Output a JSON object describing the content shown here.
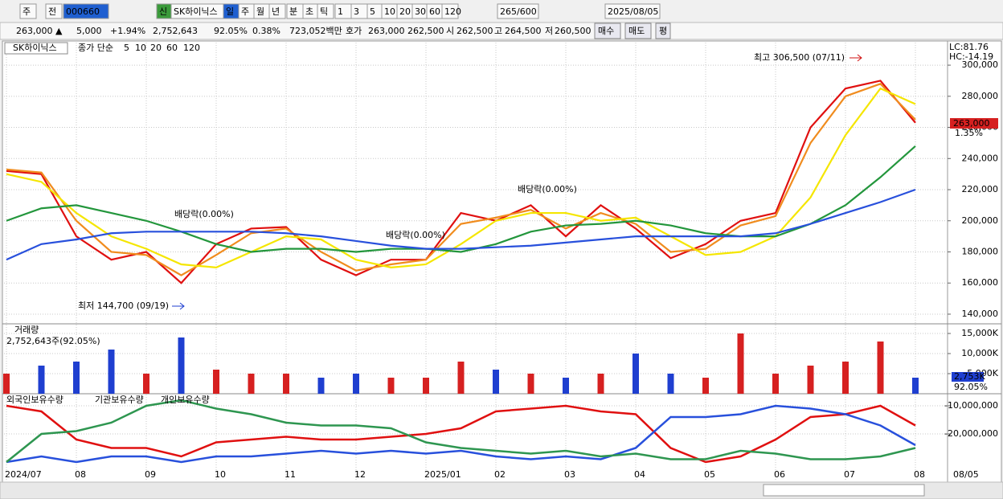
{
  "toolbar": {
    "items": [
      "주",
      "전",
      "000660",
      "신",
      "SK하이닉스",
      "일",
      "주",
      "월",
      "년",
      "분",
      "초",
      "틱",
      "1",
      "3",
      "5",
      "10",
      "20",
      "30",
      "60",
      "120",
      "265/600",
      "2025/08/05"
    ]
  },
  "quote": {
    "items": [
      "263,000 ▲",
      "5,000",
      "+1.94%",
      "2,752,643",
      "92.05%",
      "0.38%",
      "723,052백만",
      "호가",
      "263,000",
      "262,500",
      "시",
      "262,500",
      "고",
      "264,500",
      "저",
      "260,500",
      "매수",
      "매도",
      "평"
    ]
  },
  "x_labels": [
    "2024/07",
    "08",
    "09",
    "10",
    "11",
    "12",
    "2025/01",
    "02",
    "03",
    "04",
    "05",
    "06",
    "07",
    "08"
  ],
  "x_end_label": "08/05",
  "price": {
    "legend": [
      "SK하이닉스",
      "종가 단순"
    ],
    "ylim": [
      134300,
      314500
    ],
    "yticks": [
      {
        "value": 140000,
        "label": "140,000"
      },
      {
        "value": 160000,
        "label": "160,000"
      },
      {
        "value": 180000,
        "label": "180,000"
      },
      {
        "value": 200000,
        "label": "200,000"
      },
      {
        "value": 220000,
        "label": "220,000"
      },
      {
        "value": 240000,
        "label": "240,000"
      },
      {
        "value": 260000,
        "label": "260,000"
      },
      {
        "value": 280000,
        "label": "280,000"
      },
      {
        "value": 300000,
        "label": "300,000"
      }
    ],
    "right_labels": [
      "LC:81.76",
      "HC:-14.19",
      "263,000",
      "1.35%"
    ],
    "annotations": [
      "최고 306,500 (07/11)",
      "최저 144,700 (09/19)",
      "배당락(0.00%)",
      "배당락(0.00%)",
      "배당락(0.00%)"
    ],
    "series": [
      {
        "name": "5",
        "color": "#e01010",
        "values": [
          232000,
          230000,
          190000,
          175000,
          180000,
          160000,
          185000,
          195000,
          196000,
          175000,
          165000,
          175000,
          175000,
          205000,
          200000,
          210000,
          190000,
          210000,
          195000,
          176000,
          185000,
          200000,
          205000,
          260000,
          285000,
          290000,
          263000
        ]
      },
      {
        "name": "10",
        "color": "#f08c1e",
        "values": [
          233000,
          231000,
          200000,
          180000,
          178000,
          165000,
          178000,
          192000,
          195000,
          180000,
          168000,
          172000,
          175000,
          198000,
          202000,
          207000,
          195000,
          205000,
          198000,
          180000,
          182000,
          197000,
          203000,
          250000,
          280000,
          288000,
          265000
        ]
      },
      {
        "name": "20",
        "color": "#f5e600",
        "values": [
          230000,
          225000,
          205000,
          190000,
          182000,
          172000,
          170000,
          180000,
          190000,
          188000,
          175000,
          170000,
          172000,
          185000,
          200000,
          205000,
          205000,
          200000,
          202000,
          190000,
          178000,
          180000,
          190000,
          215000,
          255000,
          285000,
          275000
        ]
      },
      {
        "name": "60",
        "color": "#23963c",
        "values": [
          200000,
          208000,
          210000,
          205000,
          200000,
          193000,
          185000,
          180000,
          182000,
          182000,
          180000,
          182000,
          182000,
          180000,
          185000,
          193000,
          197000,
          198000,
          200000,
          197000,
          192000,
          190000,
          190000,
          198000,
          210000,
          228000,
          248000
        ]
      },
      {
        "name": "120",
        "color": "#2850dc",
        "values": [
          175000,
          185000,
          188000,
          192000,
          193000,
          193000,
          193000,
          193000,
          192000,
          190000,
          187000,
          184000,
          182000,
          182000,
          183000,
          184000,
          186000,
          188000,
          190000,
          190000,
          190000,
          190000,
          192000,
          198000,
          205000,
          212000,
          220000
        ]
      }
    ]
  },
  "volume": {
    "title": "거래량",
    "info": "2,752,643주(92.05%)",
    "ylim": [
      0,
      17000000
    ],
    "yticks": [
      {
        "value": 5000000,
        "label": "5,000K"
      },
      {
        "value": 10000000,
        "label": "10,000K"
      },
      {
        "value": 15000000,
        "label": "15,000K"
      }
    ],
    "right_labels": [
      "2,753K",
      "92.05%"
    ],
    "up_color": "#d62020",
    "down_color": "#1f3fd0",
    "values": [
      5000000,
      7000000,
      8000000,
      11000000,
      5000000,
      14000000,
      6000000,
      5000000,
      5000000,
      4000000,
      5000000,
      4000000,
      4000000,
      8000000,
      6000000,
      5000000,
      4000000,
      5000000,
      10000000,
      5000000,
      4000000,
      15000000,
      5000000,
      7000000,
      8000000,
      13000000,
      4000000
    ]
  },
  "holdings": {
    "ylim": [
      -36570000,
      -6290000
    ],
    "yticks": [
      {
        "value": -20000000,
        "label": "-20,000,000"
      },
      {
        "value": -10000000,
        "label": "-10,000,000"
      }
    ],
    "series": [
      {
        "name": "외국인보유수량",
        "color": "#e01010",
        "values": [
          -10000000,
          -12000000,
          -22000000,
          -25000000,
          -25000000,
          -28000000,
          -23000000,
          -22000000,
          -21000000,
          -22000000,
          -22000000,
          -21000000,
          -20000000,
          -18000000,
          -12000000,
          -11000000,
          -10000000,
          -12000000,
          -13000000,
          -25000000,
          -30000000,
          -28000000,
          -22000000,
          -14000000,
          -13000000,
          -10000000,
          -17000000
        ]
      },
      {
        "name": "기관보유수량",
        "color": "#2850dc",
        "values": [
          -30000000,
          -28000000,
          -30000000,
          -28000000,
          -28000000,
          -30000000,
          -28000000,
          -28000000,
          -27000000,
          -26000000,
          -27000000,
          -26000000,
          -27000000,
          -26000000,
          -28000000,
          -29000000,
          -28000000,
          -29000000,
          -25000000,
          -14000000,
          -14000000,
          -13000000,
          -10000000,
          -11000000,
          -13000000,
          -17000000,
          -24000000
        ]
      },
      {
        "name": "개인보유수량",
        "color": "#2e9650",
        "values": [
          -30000000,
          -20000000,
          -19000000,
          -16000000,
          -10000000,
          -8000000,
          -11000000,
          -13000000,
          -16000000,
          -17000000,
          -17000000,
          -18000000,
          -23000000,
          -25000000,
          -26000000,
          -27000000,
          -26000000,
          -28000000,
          -27000000,
          -29000000,
          -29000000,
          -26000000,
          -27000000,
          -29000000,
          -29000000,
          -28000000,
          -25000000
        ]
      }
    ]
  }
}
